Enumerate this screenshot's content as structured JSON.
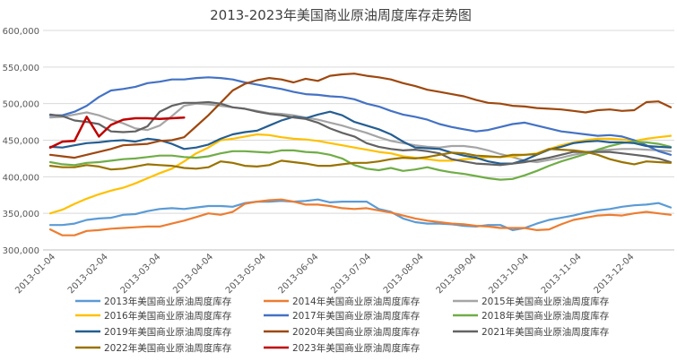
{
  "chart_data": {
    "type": "line",
    "title": "2013-2023年美国商业原油周度库存走势图",
    "xlabel": "",
    "ylabel": "",
    "ylim": [
      300000,
      600000
    ],
    "y_ticks": [
      "300,000",
      "350,000",
      "400,000",
      "450,000",
      "500,000",
      "550,000",
      "600,000"
    ],
    "y_tick_values": [
      300000,
      350000,
      400000,
      450000,
      500000,
      550000,
      600000
    ],
    "x_ticks": [
      "2013-01-04",
      "2013-02-04",
      "2013-03-04",
      "2013-04-04",
      "2013-05-04",
      "2013-06-04",
      "2013-07-04",
      "2013-08-04",
      "2013-09-04",
      "2013-10-04",
      "2013-11-04",
      "2013-12-04"
    ],
    "week_count": 52,
    "grid": true,
    "legend_position": "bottom",
    "series": [
      {
        "name": "2013年美国商业原油周度库存",
        "color": "#5b9bd5",
        "values": [
          334000,
          334000,
          336000,
          341000,
          343000,
          344000,
          348000,
          349000,
          353000,
          356000,
          357000,
          356000,
          358000,
          360000,
          360000,
          359000,
          364000,
          366000,
          366000,
          367000,
          366000,
          367000,
          369000,
          365000,
          366000,
          366000,
          366000,
          356000,
          352000,
          343000,
          338000,
          336000,
          336000,
          335000,
          333000,
          332000,
          334000,
          334000,
          327000,
          330000,
          336000,
          341000,
          344000,
          347000,
          351000,
          354000,
          356000,
          359000,
          361000,
          362000,
          364000,
          358000
        ]
      },
      {
        "name": "2014年美国商业原油周度库存",
        "color": "#ed7d31",
        "values": [
          328000,
          320000,
          320000,
          326000,
          327000,
          329000,
          330000,
          331000,
          332000,
          332000,
          336000,
          340000,
          345000,
          350000,
          348000,
          352000,
          363000,
          366000,
          368000,
          369000,
          366000,
          362000,
          362000,
          360000,
          357000,
          356000,
          357000,
          354000,
          351000,
          347000,
          343000,
          340000,
          338000,
          336000,
          335000,
          333000,
          332000,
          330000,
          330000,
          330000,
          327000,
          328000,
          335000,
          341000,
          344000,
          347000,
          348000,
          347000,
          350000,
          352000,
          350000,
          348000
        ]
      },
      {
        "name": "2015年美国商业原油周度库存",
        "color": "#a5a5a5",
        "values": [
          481000,
          482000,
          485000,
          488000,
          484000,
          478000,
          473000,
          466000,
          464000,
          470000,
          483000,
          497000,
          500000,
          499000,
          497000,
          495000,
          493000,
          490000,
          487000,
          486000,
          484000,
          481000,
          478000,
          474000,
          470000,
          465000,
          460000,
          454000,
          449000,
          446000,
          443000,
          441000,
          440000,
          442000,
          442000,
          440000,
          436000,
          431000,
          427000,
          422000,
          420000,
          423000,
          426000,
          430000,
          433000,
          436000,
          437000,
          438000,
          438000,
          437000,
          436000,
          435000
        ]
      },
      {
        "name": "2016年美国商业原油周度库存",
        "color": "#ffc000",
        "values": [
          350000,
          355000,
          363000,
          370000,
          376000,
          381000,
          385000,
          391000,
          398000,
          405000,
          411000,
          421000,
          432000,
          440000,
          450000,
          452000,
          455000,
          458000,
          457000,
          454000,
          452000,
          451000,
          449000,
          446000,
          443000,
          440000,
          437000,
          434000,
          432000,
          428000,
          426000,
          424000,
          422000,
          422000,
          424000,
          425000,
          427000,
          427000,
          428000,
          430000,
          432000,
          438000,
          443000,
          447000,
          450000,
          452000,
          452000,
          451000,
          449000,
          452000,
          454000,
          456000
        ]
      },
      {
        "name": "2017年美国商业原油周度库存",
        "color": "#4472c4",
        "values": [
          484000,
          484000,
          489000,
          497000,
          509000,
          518000,
          520000,
          523000,
          528000,
          530000,
          533000,
          533000,
          535000,
          536000,
          535000,
          533000,
          529000,
          526000,
          523000,
          520000,
          516000,
          513000,
          512000,
          510000,
          509000,
          506000,
          500000,
          496000,
          490000,
          485000,
          482000,
          478000,
          472000,
          468000,
          465000,
          462000,
          464000,
          468000,
          472000,
          474000,
          470000,
          466000,
          462000,
          460000,
          458000,
          456000,
          457000,
          455000,
          450000,
          443000,
          435000,
          430000
        ]
      },
      {
        "name": "2018年美国商业原油周度库存",
        "color": "#70ad47",
        "values": [
          420000,
          417000,
          416000,
          419000,
          420000,
          422000,
          424000,
          425000,
          427000,
          429000,
          429000,
          427000,
          426000,
          428000,
          432000,
          435000,
          435000,
          434000,
          433000,
          436000,
          436000,
          434000,
          433000,
          430000,
          425000,
          416000,
          411000,
          409000,
          412000,
          408000,
          410000,
          413000,
          409000,
          406000,
          404000,
          401000,
          398000,
          396000,
          397000,
          402000,
          408000,
          415000,
          421000,
          426000,
          431000,
          437000,
          442000,
          446000,
          448000,
          447000,
          445000,
          441000
        ]
      },
      {
        "name": "2019年美国商业原油周度库存",
        "color": "#255e91",
        "values": [
          441000,
          440000,
          443000,
          446000,
          447000,
          449000,
          450000,
          448000,
          452000,
          450000,
          445000,
          438000,
          440000,
          444000,
          452000,
          458000,
          461000,
          463000,
          470000,
          477000,
          482000,
          480000,
          485000,
          489000,
          484000,
          475000,
          470000,
          465000,
          458000,
          448000,
          440000,
          439000,
          438000,
          433000,
          429000,
          426000,
          421000,
          418000,
          418000,
          423000,
          430000,
          437000,
          441000,
          446000,
          448000,
          449000,
          447000,
          447000,
          446000,
          442000,
          441000,
          440000
        ]
      },
      {
        "name": "2020年美国商业原油周度库存",
        "color": "#9e480e",
        "values": [
          430000,
          428000,
          426000,
          430000,
          434000,
          438000,
          443000,
          444000,
          445000,
          449000,
          450000,
          454000,
          469000,
          484000,
          501000,
          518000,
          527000,
          532000,
          535000,
          533000,
          529000,
          534000,
          531000,
          538000,
          540000,
          541000,
          538000,
          536000,
          533000,
          528000,
          524000,
          519000,
          516000,
          513000,
          510000,
          505000,
          501000,
          500000,
          497000,
          496000,
          494000,
          493000,
          492000,
          490000,
          488000,
          491000,
          492000,
          490000,
          491000,
          502000,
          503000,
          495000
        ]
      },
      {
        "name": "2021年美国商业原油周度库存",
        "color": "#636363",
        "values": [
          485000,
          483000,
          477000,
          475000,
          472000,
          462000,
          461000,
          462000,
          469000,
          489000,
          497000,
          501000,
          501000,
          502000,
          500000,
          495000,
          493000,
          489000,
          486000,
          484000,
          481000,
          479000,
          474000,
          466000,
          460000,
          455000,
          446000,
          441000,
          438000,
          436000,
          437000,
          435000,
          432000,
          424000,
          421000,
          418000,
          417000,
          416000,
          418000,
          420000,
          423000,
          426000,
          430000,
          434000,
          434000,
          434000,
          434000,
          432000,
          430000,
          428000,
          425000,
          420000
        ]
      },
      {
        "name": "2022年美国商业原油周度库存",
        "color": "#997300",
        "values": [
          415000,
          413000,
          413000,
          416000,
          414000,
          410000,
          411000,
          414000,
          417000,
          416000,
          415000,
          412000,
          411000,
          413000,
          421000,
          419000,
          415000,
          414000,
          416000,
          422000,
          420000,
          418000,
          415000,
          415000,
          417000,
          419000,
          419000,
          421000,
          424000,
          426000,
          425000,
          427000,
          430000,
          433000,
          432000,
          429000,
          428000,
          427000,
          430000,
          430000,
          431000,
          438000,
          437000,
          436000,
          434000,
          430000,
          424000,
          420000,
          417000,
          421000,
          420000,
          419000
        ]
      },
      {
        "name": "2023年美国商业原油周度库存",
        "color": "#c00000",
        "values": [
          440000,
          448000,
          449000,
          482000,
          455000,
          471000,
          478000,
          480000,
          480000,
          479000,
          480000,
          481000
        ]
      }
    ]
  }
}
